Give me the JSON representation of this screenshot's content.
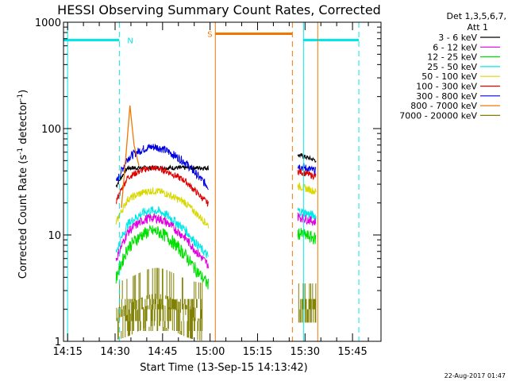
{
  "chart_data": {
    "type": "line",
    "title": "HESSI Observing Summary Count Rates, Corrected",
    "xlabel": "Start Time (13-Sep-15 14:13:42)",
    "ylabel_main": "Corrected Count Rate (s",
    "ylabel_sup1": "-1",
    "ylabel_mid": " detector",
    "ylabel_sup2": "-1",
    "ylabel_end": ")",
    "yscale": "log",
    "ylim": [
      1,
      1000
    ],
    "xlim": [
      "14:13:42",
      "15:54:00"
    ],
    "x_ticks": [
      "14:15",
      "14:30",
      "14:45",
      "15:00",
      "15:15",
      "15:30",
      "15:45"
    ],
    "y_ticks": [
      "1",
      "10",
      "100",
      "1000"
    ],
    "legend_title_1": "Det 1,3,5,6,7,",
    "legend_title_2": "Att 1",
    "legend_position": "top-right",
    "series": [
      {
        "name": "3 - 6 keV",
        "color": "#000000"
      },
      {
        "name": "6 - 12 keV",
        "color": "#e000e0"
      },
      {
        "name": "12 - 25 keV",
        "color": "#00e000"
      },
      {
        "name": "25 - 50 keV",
        "color": "#00e8e8"
      },
      {
        "name": "50 - 100 keV",
        "color": "#d8d800"
      },
      {
        "name": "100 - 300 keV",
        "color": "#e00000"
      },
      {
        "name": "300 - 800 keV",
        "color": "#0000e0"
      },
      {
        "name": "800 - 7000 keV",
        "color": "#f07800"
      },
      {
        "name": "7000 - 20000 keV",
        "color": "#808000"
      }
    ],
    "markers": {
      "night_label": "N",
      "saa_label": "S"
    },
    "timestamp": "22-Aug-2017 01:47"
  }
}
